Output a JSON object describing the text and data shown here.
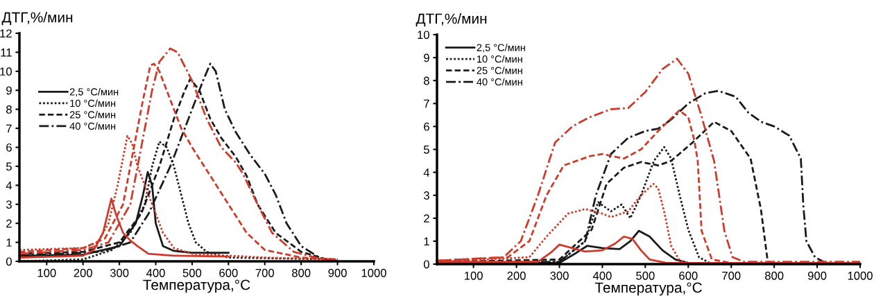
{
  "chart_data": [
    {
      "type": "line",
      "ylabel": "ДТГ,%/мин",
      "xlabel": "Температура,°C",
      "xlim": [
        25,
        1000
      ],
      "xticks": [
        100,
        200,
        300,
        400,
        500,
        600,
        700,
        800,
        900,
        1000
      ],
      "ylim": [
        0,
        12
      ],
      "yticks": [
        0,
        1,
        2,
        3,
        4,
        5,
        6,
        7,
        8,
        9,
        10,
        11,
        12
      ],
      "grid": false,
      "legend": "top left",
      "marker": "none",
      "series": [
        {
          "name": "2,5 °C/мин",
          "color": "#1a1a1a",
          "line_style": "solid",
          "x": [
            25,
            200,
            300,
            345,
            365,
            378,
            390,
            400,
            420,
            450,
            500,
            600
          ],
          "values": [
            0.3,
            0.35,
            0.8,
            2,
            3.5,
            4.7,
            4,
            2,
            0.8,
            0.55,
            0.45,
            0.45
          ]
        },
        {
          "name": "10 °C/мин",
          "color": "#1a1a1a",
          "line_style": "dotted",
          "x": [
            25,
            200,
            280,
            330,
            370,
            390,
            410,
            430,
            450,
            470,
            490,
            510,
            540,
            600,
            900
          ],
          "values": [
            0,
            0.1,
            0.6,
            1.5,
            3,
            5,
            6.3,
            6,
            5,
            3.5,
            2,
            1,
            0.5,
            0.2,
            0.1
          ]
        },
        {
          "name": "25 °C/мин",
          "color": "#1a1a1a",
          "line_style": "dashed",
          "x": [
            25,
            200,
            300,
            360,
            410,
            450,
            480,
            495,
            520,
            550,
            580,
            620,
            650,
            680,
            730,
            800,
            870,
            900
          ],
          "values": [
            0.4,
            0.5,
            1,
            2.5,
            5,
            7.5,
            9,
            9.6,
            9,
            7.5,
            6.5,
            5.5,
            4.5,
            3,
            1.5,
            0.5,
            0.1,
            0.05
          ]
        },
        {
          "name": "40 °C/мин",
          "color": "#1a1a1a",
          "line_style": "dashdot",
          "x": [
            25,
            250,
            330,
            380,
            440,
            490,
            530,
            550,
            565,
            590,
            620,
            660,
            700,
            730,
            760,
            800,
            850,
            880
          ],
          "values": [
            0.3,
            0.5,
            1,
            2.5,
            5,
            7.5,
            9.5,
            10.4,
            10,
            8,
            6.8,
            5.6,
            4.6,
            3.5,
            2,
            0.8,
            0.2,
            0.05
          ]
        },
        {
          "color": "#d03a2a",
          "line_style": "solid",
          "x": [
            25,
            200,
            230,
            255,
            278,
            290,
            310,
            330,
            350,
            380,
            450,
            600
          ],
          "values": [
            0.2,
            0.3,
            0.6,
            1.5,
            3.3,
            2.5,
            1.5,
            1.1,
            0.8,
            0.4,
            0.3,
            0.25
          ]
        },
        {
          "color": "#d03a2a",
          "line_style": "dotted",
          "x": [
            25,
            200,
            240,
            270,
            295,
            322,
            335,
            350,
            370,
            390,
            420,
            450,
            500,
            700,
            900
          ],
          "values": [
            0.6,
            0.7,
            1,
            2,
            4,
            6.6,
            6.2,
            5,
            4,
            3,
            1.5,
            0.7,
            0.4,
            0.2,
            0.1
          ]
        },
        {
          "color": "#d03a2a",
          "line_style": "dashed",
          "x": [
            25,
            200,
            260,
            310,
            340,
            365,
            385,
            395,
            410,
            440,
            470,
            500,
            550,
            600,
            650,
            700,
            800,
            900
          ],
          "values": [
            0.5,
            0.7,
            1.2,
            3,
            6,
            8.5,
            10.3,
            10.4,
            10,
            8.5,
            7,
            6,
            4.5,
            3,
            1.5,
            0.6,
            0.2,
            0.1
          ]
        },
        {
          "color": "#d03a2a",
          "line_style": "dashdot",
          "x": [
            25,
            200,
            270,
            330,
            360,
            390,
            410,
            440,
            460,
            500,
            540,
            580,
            620,
            640,
            680,
            720,
            780,
            850,
            900
          ],
          "values": [
            0.4,
            0.6,
            1,
            3,
            6,
            9,
            10.5,
            11.2,
            11,
            9.5,
            7.5,
            6,
            5.2,
            4.6,
            3,
            1.5,
            0.5,
            0.15,
            0.05
          ]
        }
      ]
    },
    {
      "type": "line",
      "ylabel": "ДТГ,%/мин",
      "xlabel": "Температура,°C",
      "xlim": [
        15,
        1000
      ],
      "xticks": [
        100,
        200,
        300,
        400,
        500,
        600,
        700,
        800,
        900,
        1000
      ],
      "ylim": [
        0,
        10
      ],
      "yticks": [
        0,
        1,
        2,
        3,
        4,
        5,
        6,
        7,
        8,
        9,
        10
      ],
      "grid": false,
      "legend": "top left",
      "marker": "none",
      "series": [
        {
          "name": "2,5 °C/мин",
          "color": "#1a1a1a",
          "line_style": "solid",
          "x": [
            15,
            300,
            340,
            365,
            400,
            440,
            465,
            485,
            510,
            540,
            570,
            600
          ],
          "values": [
            0.05,
            0.05,
            0.5,
            0.8,
            0.7,
            0.65,
            1,
            1.45,
            1.2,
            0.6,
            0.2,
            0.05
          ]
        },
        {
          "name": "10 °C/мин",
          "color": "#1a1a1a",
          "line_style": "dotted",
          "x": [
            15,
            300,
            360,
            390,
            420,
            445,
            465,
            490,
            520,
            544,
            560,
            580,
            600,
            625,
            650,
            1000
          ],
          "values": [
            0.05,
            0.1,
            1,
            2.7,
            2.3,
            2.6,
            2,
            3,
            4.5,
            5.1,
            4.6,
            3,
            1.5,
            0.3,
            0.05,
            0
          ]
        },
        {
          "name": "25 °C/мин",
          "color": "#1a1a1a",
          "line_style": "dashed",
          "x": [
            15,
            300,
            375,
            410,
            450,
            490,
            530,
            560,
            610,
            660,
            700,
            745,
            769,
            785,
            800,
            1000
          ],
          "values": [
            0.1,
            0.2,
            1.5,
            3.5,
            4.2,
            4.45,
            4.3,
            4.5,
            5.3,
            6.2,
            5.8,
            4.6,
            2.4,
            0.1,
            0.05,
            0
          ]
        },
        {
          "name": "40 °C/мин",
          "color": "#1a1a1a",
          "line_style": "dashdot",
          "x": [
            15,
            300,
            360,
            385,
            420,
            460,
            500,
            530,
            560,
            600,
            640,
            670,
            710,
            740,
            770,
            800,
            835,
            862,
            868,
            875,
            895,
            920,
            1000
          ],
          "values": [
            0.05,
            0.1,
            1,
            3,
            4.8,
            5.5,
            5.8,
            5.9,
            6.3,
            7,
            7.45,
            7.55,
            7.3,
            6.6,
            6.2,
            6,
            5.6,
            4.6,
            2.5,
            1,
            0.3,
            0.05,
            0.05
          ]
        },
        {
          "color": "#d03a2a",
          "line_style": "solid",
          "x": [
            15,
            250,
            280,
            300,
            330,
            360,
            400,
            430,
            450,
            470,
            490,
            510,
            550,
            1000
          ],
          "values": [
            0.1,
            0.1,
            0.5,
            0.85,
            0.7,
            0.55,
            0.6,
            0.9,
            1.2,
            1.1,
            0.6,
            0.2,
            0.05,
            0.05
          ]
        },
        {
          "color": "#d03a2a",
          "line_style": "dotted",
          "x": [
            15,
            230,
            270,
            320,
            360,
            400,
            420,
            460,
            490,
            519,
            530,
            545,
            560,
            580,
            600
          ],
          "values": [
            0.1,
            0.3,
            1.2,
            2.2,
            2.4,
            2.2,
            2.05,
            2.3,
            3,
            3.5,
            3.3,
            2.2,
            0.8,
            0.15,
            0.05
          ]
        },
        {
          "color": "#d03a2a",
          "line_style": "dashed",
          "x": [
            15,
            180,
            230,
            270,
            310,
            370,
            400,
            450,
            490,
            530,
            579,
            600,
            614,
            622,
            631,
            655,
            700
          ],
          "values": [
            0.15,
            0.3,
            1,
            3,
            4.3,
            4.7,
            4.8,
            4.6,
            5,
            5.8,
            6.7,
            6.4,
            5.4,
            4.5,
            1.45,
            0.2,
            0.05
          ]
        },
        {
          "color": "#d03a2a",
          "line_style": "dashdot",
          "x": [
            15,
            170,
            210,
            250,
            290,
            330,
            370,
            420,
            460,
            500,
            540,
            574,
            600,
            630,
            660,
            684,
            703,
            730,
            1000
          ],
          "values": [
            0.15,
            0.3,
            1,
            3,
            5.3,
            6,
            6.4,
            6.75,
            6.8,
            7.5,
            8.5,
            8.95,
            8.3,
            6.5,
            4.5,
            1.45,
            0.3,
            0.1,
            0.1
          ]
        }
      ]
    }
  ]
}
